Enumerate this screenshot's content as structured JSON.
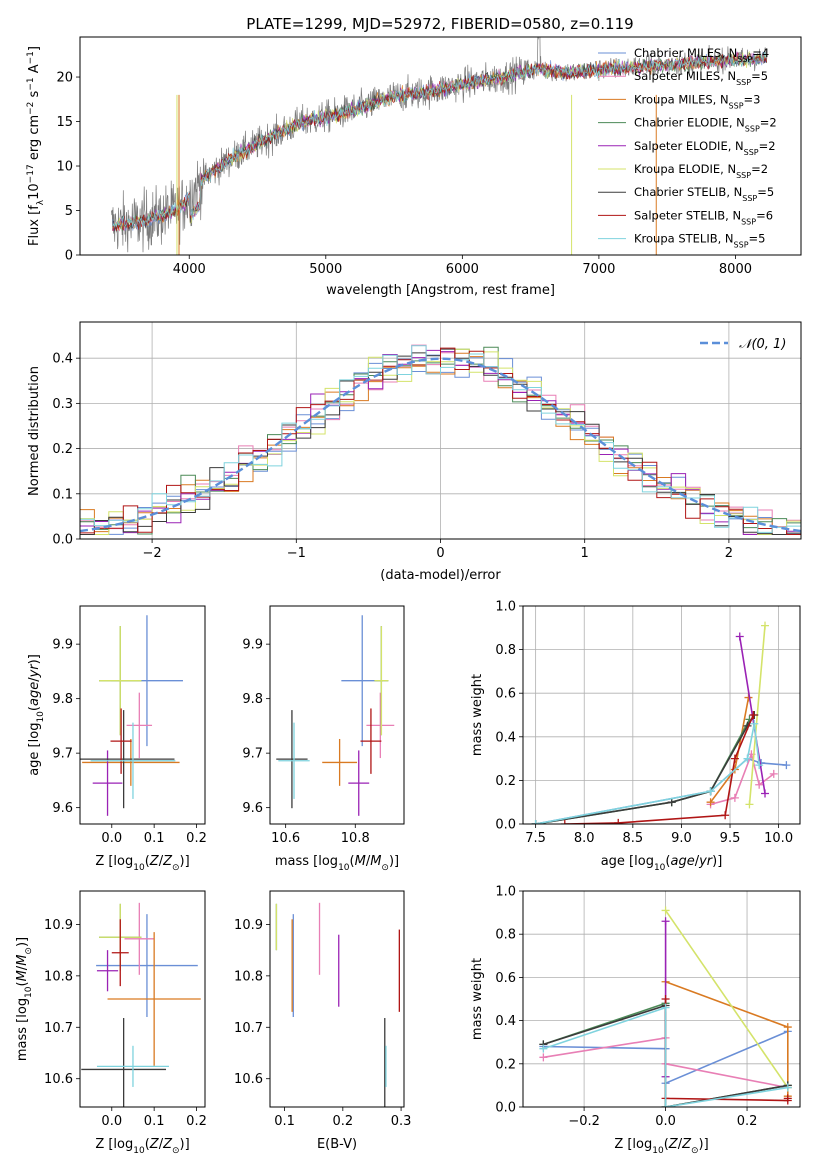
{
  "figure": {
    "title": "PLATE=1299, MJD=52972, FIBERID=0580, z=0.119"
  },
  "models": [
    {
      "name": "Chabrier MILES, N_SSP=4",
      "label_main": "Chabrier MILES, N",
      "label_sub": "SSP",
      "label_tail": "=4",
      "color": "#6a8fd6"
    },
    {
      "name": "Salpeter MILES, N_SSP=5",
      "label_main": "Salpeter MILES, N",
      "label_sub": "SSP",
      "label_tail": "=5",
      "color": "#e87fb5"
    },
    {
      "name": "Kroupa MILES, N_SSP=3",
      "label_main": "Kroupa MILES, N",
      "label_sub": "SSP",
      "label_tail": "=3",
      "color": "#d97a22"
    },
    {
      "name": "Chabrier ELODIE, N_SSP=2",
      "label_main": "Chabrier ELODIE, N",
      "label_sub": "SSP",
      "label_tail": "=2",
      "color": "#4b8a57"
    },
    {
      "name": "Salpeter ELODIE, N_SSP=2",
      "label_main": "Salpeter ELODIE, N",
      "label_sub": "SSP",
      "label_tail": "=2",
      "color": "#9a22b5"
    },
    {
      "name": "Kroupa ELODIE, N_SSP=2",
      "label_main": "Kroupa ELODIE, N",
      "label_sub": "SSP",
      "label_tail": "=2",
      "color": "#d4e36a"
    },
    {
      "name": "Chabrier STELIB, N_SSP=5",
      "label_main": "Chabrier STELIB, N",
      "label_sub": "SSP",
      "label_tail": "=5",
      "color": "#3b3b3b"
    },
    {
      "name": "Salpeter STELIB, N_SSP=6",
      "label_main": "Salpeter STELIB, N",
      "label_sub": "SSP",
      "label_tail": "=6",
      "color": "#b01515"
    },
    {
      "name": "Kroupa STELIB, N_SSP=5",
      "label_main": "Kroupa STELIB, N",
      "label_sub": "SSP",
      "label_tail": "=5",
      "color": "#7fd3de"
    }
  ],
  "chart_data": [
    {
      "id": "spectrum",
      "type": "line",
      "xlabel": "wavelength [Angstrom, rest frame]",
      "ylabel": "Flux [f_λ 10^-17 erg cm^-2 s^-1 A^-1]",
      "xlim": [
        3200,
        8480
      ],
      "ylim": [
        0,
        24.5
      ],
      "xticks": [
        4000,
        5000,
        6000,
        7000,
        8000
      ],
      "yticks": [
        0,
        5,
        10,
        15,
        20
      ],
      "legend": "right",
      "data_envelope": [
        {
          "x": 3430,
          "y": 3.3
        },
        {
          "x": 3600,
          "y": 3.6
        },
        {
          "x": 3800,
          "y": 4.4
        },
        {
          "x": 3950,
          "y": 5.5
        },
        {
          "x": 4100,
          "y": 8.6
        },
        {
          "x": 4300,
          "y": 10.8
        },
        {
          "x": 4500,
          "y": 12.5
        },
        {
          "x": 4800,
          "y": 14.8
        },
        {
          "x": 5000,
          "y": 15.5
        },
        {
          "x": 5200,
          "y": 16.3
        },
        {
          "x": 5500,
          "y": 17.8
        },
        {
          "x": 5800,
          "y": 18.5
        },
        {
          "x": 6000,
          "y": 19.2
        },
        {
          "x": 6300,
          "y": 20.0
        },
        {
          "x": 6550,
          "y": 21.0
        },
        {
          "x": 6800,
          "y": 20.5
        },
        {
          "x": 7000,
          "y": 20.8
        },
        {
          "x": 7300,
          "y": 21.2
        },
        {
          "x": 7600,
          "y": 21.5
        },
        {
          "x": 7900,
          "y": 21.9
        },
        {
          "x": 8230,
          "y": 22.1
        }
      ]
    },
    {
      "id": "residuals",
      "type": "histogram",
      "xlabel": "(data-model)/error",
      "ylabel": "Normed distribution",
      "xlim": [
        -2.5,
        2.5
      ],
      "ylim": [
        0,
        0.48
      ],
      "xticks": [
        -2,
        -1,
        0,
        1,
        2
      ],
      "yticks": [
        0.0,
        0.1,
        0.2,
        0.3,
        0.4
      ],
      "grid": true,
      "legend": "top-right",
      "reference_curve": "N(0,1)",
      "reference_label": "𝒩(0, 1)"
    },
    {
      "id": "age-vs-Z",
      "type": "scatter",
      "xlabel": "Z [log10(Z/Z☉)]",
      "ylabel": "age  [log10(age/yr)]",
      "xlim": [
        -0.075,
        0.22
      ],
      "ylim": [
        9.57,
        9.97
      ],
      "xticks": [
        0.0,
        0.1,
        0.2
      ],
      "yticks": [
        9.6,
        9.7,
        9.8,
        9.9
      ],
      "points": [
        {
          "model": 0,
          "x": 0.083,
          "xerr": 0.085,
          "y": 9.833,
          "yerr": 0.12
        },
        {
          "model": 1,
          "x": 0.065,
          "xerr": 0.03,
          "y": 9.751,
          "yerr": 0.06
        },
        {
          "model": 2,
          "x": 0.045,
          "xerr": 0.115,
          "y": 9.683,
          "yerr": 0.043
        },
        {
          "model": 3,
          "x": 0.02,
          "xerr": 0.05,
          "y": 9.833,
          "yerr": 0.1
        },
        {
          "model": 4,
          "x": -0.01,
          "xerr": 0.035,
          "y": 9.645,
          "yerr": 0.06
        },
        {
          "model": 5,
          "x": 0.02,
          "xerr": 0.05,
          "y": 9.833,
          "yerr": 0.1
        },
        {
          "model": 6,
          "x": 0.028,
          "xerr": 0.12,
          "y": 9.689,
          "yerr": 0.09
        },
        {
          "model": 7,
          "x": 0.022,
          "xerr": 0.025,
          "y": 9.722,
          "yerr": 0.06
        },
        {
          "model": 8,
          "x": 0.05,
          "xerr": 0.1,
          "y": 9.686,
          "yerr": 0.07
        }
      ]
    },
    {
      "id": "age-vs-mass",
      "type": "scatter",
      "xlabel": "mass [log10(M/M☉)]",
      "ylabel": "",
      "xlim": [
        10.555,
        10.94
      ],
      "ylim": [
        9.57,
        9.97
      ],
      "xticks": [
        10.6,
        10.8
      ],
      "yticks": [
        9.6,
        9.7,
        9.8,
        9.9
      ],
      "points": [
        {
          "model": 0,
          "x": 10.82,
          "xerr": 0.06,
          "y": 9.833,
          "yerr": 0.12
        },
        {
          "model": 1,
          "x": 10.872,
          "xerr": 0.04,
          "y": 9.751,
          "yerr": 0.06
        },
        {
          "model": 2,
          "x": 10.755,
          "xerr": 0.05,
          "y": 9.683,
          "yerr": 0.043
        },
        {
          "model": 3,
          "x": 10.875,
          "xerr": 0.02,
          "y": 9.833,
          "yerr": 0.1
        },
        {
          "model": 4,
          "x": 10.81,
          "xerr": 0.03,
          "y": 9.645,
          "yerr": 0.06
        },
        {
          "model": 5,
          "x": 10.875,
          "xerr": 0.02,
          "y": 9.833,
          "yerr": 0.1
        },
        {
          "model": 6,
          "x": 10.618,
          "xerr": 0.045,
          "y": 9.689,
          "yerr": 0.09
        },
        {
          "model": 7,
          "x": 10.845,
          "xerr": 0.03,
          "y": 9.722,
          "yerr": 0.06
        },
        {
          "model": 8,
          "x": 10.624,
          "xerr": 0.045,
          "y": 9.686,
          "yerr": 0.07
        }
      ]
    },
    {
      "id": "weight-vs-age",
      "type": "line",
      "xlabel": "age  [log10(age/yr)]",
      "ylabel": "mass weight",
      "xlim": [
        7.37,
        10.22
      ],
      "ylim": [
        0,
        1
      ],
      "xticks": [
        7.5,
        8.0,
        8.5,
        9.0,
        9.5,
        10.0
      ],
      "yticks": [
        0.0,
        0.2,
        0.4,
        0.6,
        0.8,
        1.0
      ],
      "grid": true,
      "series": [
        {
          "model": 0,
          "x": [
            7.5,
            9.3,
            9.68,
            9.82,
            10.08
          ],
          "y": [
            0.0,
            0.15,
            0.3,
            0.28,
            0.27
          ]
        },
        {
          "model": 1,
          "x": [
            9.3,
            9.55,
            9.72,
            9.8,
            9.95
          ],
          "y": [
            0.09,
            0.12,
            0.32,
            0.18,
            0.23
          ]
        },
        {
          "model": 2,
          "x": [
            9.3,
            9.55,
            9.69
          ],
          "y": [
            0.1,
            0.25,
            0.58
          ]
        },
        {
          "model": 3,
          "x": [
            7.5,
            8.9,
            9.3,
            9.7
          ],
          "y": [
            0.0,
            0.1,
            0.15,
            0.48
          ]
        },
        {
          "model": 4,
          "x": [
            9.6,
            9.86
          ],
          "y": [
            0.86,
            0.14
          ]
        },
        {
          "model": 5,
          "x": [
            9.7,
            9.86
          ],
          "y": [
            0.09,
            0.91
          ]
        },
        {
          "model": 6,
          "x": [
            7.5,
            8.9,
            9.3,
            9.68,
            9.75
          ],
          "y": [
            0.0,
            0.1,
            0.15,
            0.45,
            0.5
          ]
        },
        {
          "model": 7,
          "x": [
            7.8,
            8.35,
            9.45,
            9.55,
            9.74
          ],
          "y": [
            0.0,
            0.005,
            0.04,
            0.3,
            0.5
          ]
        },
        {
          "model": 8,
          "x": [
            7.5,
            9.3,
            9.68,
            9.75,
            9.8
          ],
          "y": [
            0.0,
            0.15,
            0.3,
            0.46,
            0.27
          ]
        }
      ]
    },
    {
      "id": "mass-vs-Z",
      "type": "scatter",
      "xlabel": "Z [log10(Z/Z☉)]",
      "ylabel": "mass [log10(M/M☉)]",
      "xlim": [
        -0.075,
        0.22
      ],
      "ylim": [
        10.545,
        10.965
      ],
      "xticks": [
        0.0,
        0.1,
        0.2
      ],
      "yticks": [
        10.6,
        10.7,
        10.8,
        10.9
      ],
      "points": [
        {
          "model": 0,
          "x": 0.083,
          "xerr": 0.12,
          "y": 10.82,
          "yerr": 0.1
        },
        {
          "model": 1,
          "x": 0.065,
          "xerr": 0.035,
          "y": 10.872,
          "yerr": 0.07
        },
        {
          "model": 2,
          "x": 0.1,
          "xerr": 0.11,
          "y": 10.755,
          "yerr": 0.13
        },
        {
          "model": 3,
          "x": 0.02,
          "xerr": 0.05,
          "y": 10.875,
          "yerr": 0.065
        },
        {
          "model": 4,
          "x": -0.01,
          "xerr": 0.025,
          "y": 10.81,
          "yerr": 0.04
        },
        {
          "model": 5,
          "x": 0.02,
          "xerr": 0.05,
          "y": 10.875,
          "yerr": 0.065
        },
        {
          "model": 6,
          "x": 0.028,
          "xerr": 0.1,
          "y": 10.618,
          "yerr": 0.1
        },
        {
          "model": 7,
          "x": 0.02,
          "xerr": 0.02,
          "y": 10.845,
          "yerr": 0.065
        },
        {
          "model": 8,
          "x": 0.05,
          "xerr": 0.085,
          "y": 10.624,
          "yerr": 0.04
        }
      ]
    },
    {
      "id": "mass-vs-EBV",
      "type": "scatter",
      "xlabel": "E(B-V)",
      "ylabel": "",
      "xlim": [
        0.075,
        0.305
      ],
      "ylim": [
        10.545,
        10.965
      ],
      "xticks": [
        0.1,
        0.2,
        0.3
      ],
      "yticks": [
        10.6,
        10.7,
        10.8,
        10.9
      ],
      "points": [
        {
          "model": 0,
          "x": 0.115,
          "xerr": 0,
          "y": 10.82,
          "yerr": 0.1
        },
        {
          "model": 1,
          "x": 0.16,
          "xerr": 0,
          "y": 10.872,
          "yerr": 0.07
        },
        {
          "model": 2,
          "x": 0.113,
          "xerr": 0,
          "y": 10.82,
          "yerr": 0.09
        },
        {
          "model": 3,
          "x": 0.086,
          "xerr": 0,
          "y": 10.895,
          "yerr": 0.045
        },
        {
          "model": 4,
          "x": 0.193,
          "xerr": 0,
          "y": 10.81,
          "yerr": 0.07
        },
        {
          "model": 5,
          "x": 0.086,
          "xerr": 0,
          "y": 10.895,
          "yerr": 0.045
        },
        {
          "model": 6,
          "x": 0.272,
          "xerr": 0,
          "y": 10.618,
          "yerr": 0.1
        },
        {
          "model": 7,
          "x": 0.297,
          "xerr": 0,
          "y": 10.81,
          "yerr": 0.08
        },
        {
          "model": 8,
          "x": 0.274,
          "xerr": 0,
          "y": 10.624,
          "yerr": 0.04
        }
      ]
    },
    {
      "id": "weight-vs-Z",
      "type": "line",
      "xlabel": "Z [log10(Z/Z☉)]",
      "ylabel": "mass weight",
      "xlim": [
        -0.35,
        0.33
      ],
      "ylim": [
        0,
        1
      ],
      "xticks": [
        -0.2,
        0.0,
        0.2
      ],
      "yticks": [
        0.0,
        0.2,
        0.4,
        0.6,
        0.8,
        1.0
      ],
      "grid": true,
      "series": [
        {
          "model": 0,
          "x": [
            -0.3,
            0.0,
            0.0,
            0.3
          ],
          "y": [
            0.28,
            0.27,
            0.11,
            0.35
          ]
        },
        {
          "model": 1,
          "x": [
            -0.3,
            0.0,
            0.0,
            0.3
          ],
          "y": [
            0.23,
            0.32,
            0.2,
            0.09
          ]
        },
        {
          "model": 2,
          "x": [
            0.0,
            0.3,
            0.3
          ],
          "y": [
            0.58,
            0.37,
            0.05
          ]
        },
        {
          "model": 3,
          "x": [
            -0.3,
            0.0,
            0.0,
            0.3
          ],
          "y": [
            0.29,
            0.48,
            0.0,
            0.1
          ]
        },
        {
          "model": 4,
          "x": [
            0.0,
            0.0
          ],
          "y": [
            0.86,
            0.14
          ]
        },
        {
          "model": 5,
          "x": [
            0.0,
            0.3
          ],
          "y": [
            0.91,
            0.09
          ]
        },
        {
          "model": 6,
          "x": [
            -0.3,
            0.0,
            0.0,
            0.3
          ],
          "y": [
            0.29,
            0.47,
            0.0,
            0.1
          ]
        },
        {
          "model": 7,
          "x": [
            0.0,
            0.0,
            0.3,
            0.3
          ],
          "y": [
            0.5,
            0.04,
            0.03,
            0.04
          ]
        },
        {
          "model": 8,
          "x": [
            -0.3,
            0.0,
            0.0,
            0.3
          ],
          "y": [
            0.27,
            0.46,
            0.0,
            0.09
          ]
        }
      ]
    }
  ]
}
